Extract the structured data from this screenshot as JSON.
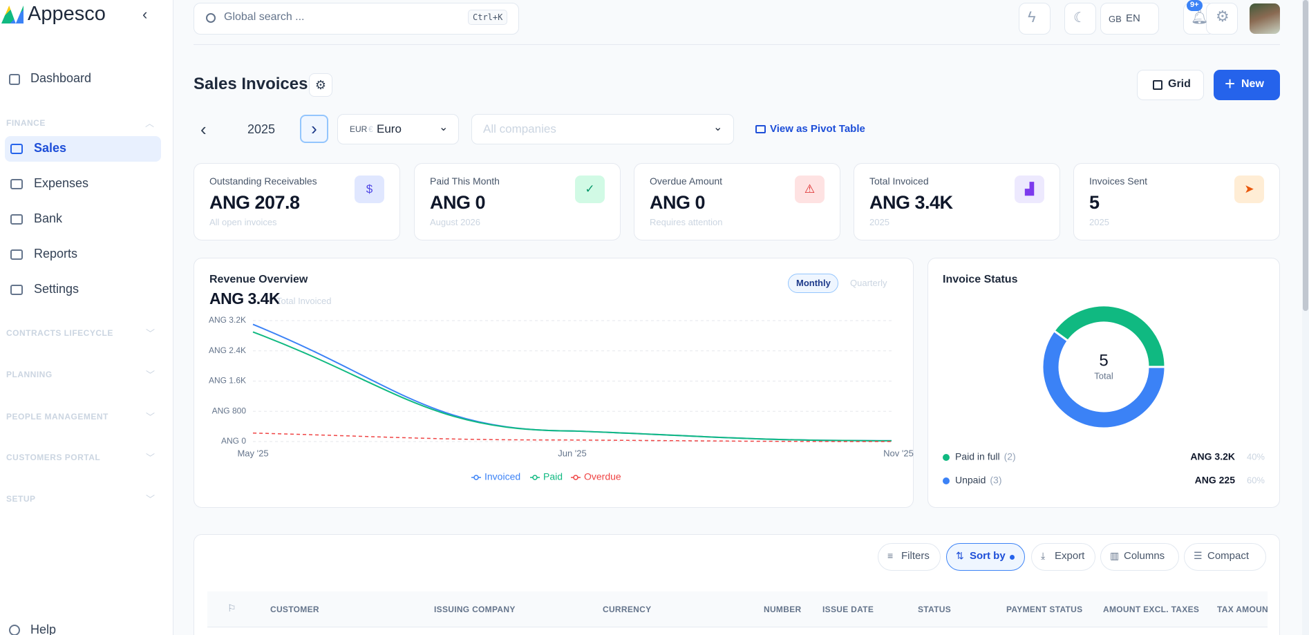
{
  "sidebar": {
    "brand": "Appesco",
    "top_items": [
      "Dashboard"
    ],
    "finance_label": "FINANCE",
    "finance_items": [
      "Sales",
      "Expenses",
      "Bank",
      "Reports",
      "Settings"
    ],
    "sections": [
      "CONTRACTS LIFECYCLE",
      "PLANNING",
      "PEOPLE MANAGEMENT",
      "CUSTOMERS PORTAL",
      "SETUP"
    ],
    "help": "Help"
  },
  "topbar": {
    "search_placeholder": "Global search ...",
    "search_shortcut": "Ctrl+K",
    "region": "GB",
    "language": "EN",
    "notifications_badge": "9+"
  },
  "page": {
    "title": "Sales Invoices",
    "view_button": "Grid",
    "new_button": "New",
    "year": "2025",
    "currency_code": "EUR",
    "currency_symbol": "€",
    "currency_name": "Euro",
    "company_placeholder": "All companies",
    "pivot_link": "View as Pivot Table"
  },
  "kpis": [
    {
      "label": "Outstanding Receivables",
      "value": "ANG 207.8",
      "sub": "All open invoices"
    },
    {
      "label": "Paid This Month",
      "value": "ANG 0",
      "sub": "August 2026"
    },
    {
      "label": "Overdue Amount",
      "value": "ANG 0",
      "sub": "Requires attention"
    },
    {
      "label": "Total Invoiced",
      "value": "ANG 3.4K",
      "sub": "2025"
    },
    {
      "label": "Invoices Sent",
      "value": "5",
      "sub": "2025"
    }
  ],
  "chart_data": [
    {
      "type": "line",
      "title": "Revenue Overview",
      "headline": "ANG 3.4K",
      "headline_caption": "Total Invoiced",
      "period_options": [
        "Monthly",
        "Quarterly"
      ],
      "categories": [
        "May '25",
        "Jun '25",
        "Nov '25"
      ],
      "series": [
        {
          "name": "Invoiced",
          "color": "#3b82f6",
          "values": [
            3100,
            280,
            20
          ]
        },
        {
          "name": "Paid",
          "color": "#10b981",
          "values": [
            2900,
            280,
            20
          ]
        },
        {
          "name": "Overdue",
          "color": "#ef4444",
          "line_style": "dashed",
          "values": [
            225,
            40,
            0
          ]
        }
      ],
      "ylim": [
        0,
        3200
      ],
      "yticks": [
        {
          "value": 0,
          "label": "ANG 0"
        },
        {
          "value": 800,
          "label": "ANG 800"
        },
        {
          "value": 1600,
          "label": "ANG 1.6K"
        },
        {
          "value": 2400,
          "label": "ANG 2.4K"
        },
        {
          "value": 3200,
          "label": "ANG 3.2K"
        }
      ],
      "grid": true,
      "legend": "bottom"
    },
    {
      "type": "pie",
      "title": "Invoice Status",
      "center_value": "5",
      "center_label": "Total",
      "categories": [
        "Paid in full",
        "Unpaid"
      ],
      "values": [
        40,
        60
      ],
      "value_labels": [
        "40%",
        "60%"
      ],
      "count_labels": [
        "(2)",
        "(3)"
      ],
      "amount_labels": [
        "ANG 3.2K",
        "ANG 225"
      ],
      "colors": [
        "#10b981",
        "#3b82f6"
      ],
      "legend": "bottom"
    }
  ],
  "table": {
    "toolbar": [
      "Filters",
      "Sort by",
      "Export",
      "Columns",
      "Compact"
    ],
    "columns": [
      "CUSTOMER",
      "ISSUING COMPANY",
      "CURRENCY",
      "NUMBER",
      "ISSUE DATE",
      "STATUS",
      "PAYMENT STATUS",
      "AMOUNT EXCL. TAXES",
      "TAX AMOUN"
    ]
  }
}
